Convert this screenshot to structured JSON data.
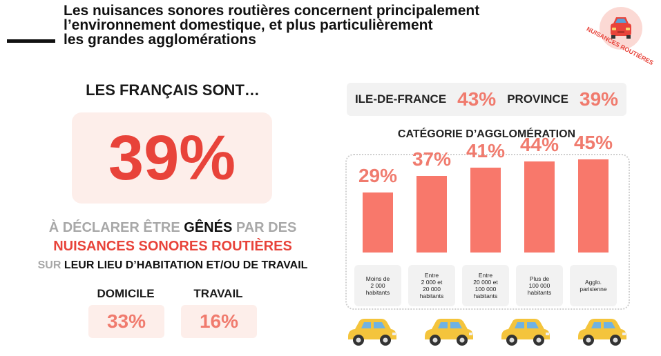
{
  "title": {
    "lines": [
      "Les nuisances sonores routières concernent principalement",
      "l’environnement domestique, et plus particulièrement",
      "les grandes agglomérations"
    ]
  },
  "badge": {
    "text": "NUISANCES ROUTIÈRES",
    "icon": "car-front-icon"
  },
  "left": {
    "heading": "LES FRANÇAIS SONT…",
    "big_value": "39%",
    "line1_pre": "À DÉCLARER ÊTRE ",
    "line1_bold": "GÊNÉS",
    "line1_post": " PAR DES",
    "line2": "NUISANCES SONORES ROUTIÈRES",
    "line3_pre": "SUR ",
    "line3_bold": "LEUR LIEU D’HABITATION ET/OU DE TRAVAIL",
    "domicile_label": "DOMICILE",
    "domicile_value": "33%",
    "travail_label": "TRAVAIL",
    "travail_value": "16%"
  },
  "regions": {
    "idf_label": "ILE-DE-FRANCE",
    "idf_value": "43%",
    "province_label": "PROVINCE",
    "province_value": "39%"
  },
  "chart_data": {
    "type": "bar",
    "title": "CATÉGORIE D’AGGLOMÉRATION",
    "categories": [
      "Moins de 2 000 habitants",
      "Entre 2 000 et 20 000 habitants",
      "Entre 20 000 et 100 000 habitants",
      "Plus de 100 000 habitants",
      "Agglo. parisienne"
    ],
    "category_lines": [
      [
        "Moins de",
        "2 000",
        "habitants"
      ],
      [
        "Entre",
        "2 000 et",
        "20 000",
        "habitants"
      ],
      [
        "Entre",
        "20 000 et",
        "100 000",
        "habitants"
      ],
      [
        "Plus de",
        "100 000",
        "habitants"
      ],
      [
        "Agglo.",
        "parisienne"
      ]
    ],
    "values": [
      29,
      37,
      41,
      44,
      45
    ],
    "value_labels": [
      "29%",
      "37%",
      "41%",
      "44%",
      "45%"
    ],
    "ylim": [
      0,
      50
    ],
    "color": "#f8786b"
  },
  "colors": {
    "accent": "#e8433a",
    "pink_bg": "#fdeeea",
    "bar": "#f8786b",
    "car": "#f4c43c"
  }
}
